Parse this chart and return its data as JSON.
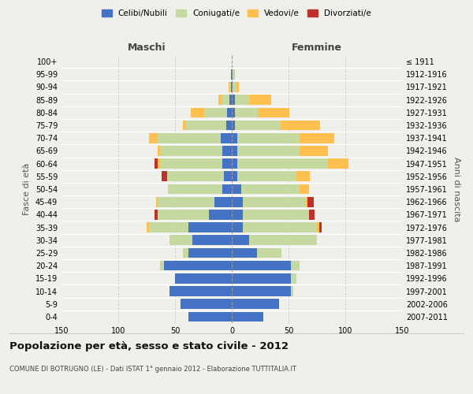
{
  "age_groups": [
    "0-4",
    "5-9",
    "10-14",
    "15-19",
    "20-24",
    "25-29",
    "30-34",
    "35-39",
    "40-44",
    "45-49",
    "50-54",
    "55-59",
    "60-64",
    "65-69",
    "70-74",
    "75-79",
    "80-84",
    "85-89",
    "90-94",
    "95-99",
    "100+"
  ],
  "birth_years": [
    "2007-2011",
    "2002-2006",
    "1997-2001",
    "1992-1996",
    "1987-1991",
    "1982-1986",
    "1977-1981",
    "1972-1976",
    "1967-1971",
    "1962-1966",
    "1957-1961",
    "1952-1956",
    "1947-1951",
    "1942-1946",
    "1937-1941",
    "1932-1936",
    "1927-1931",
    "1922-1926",
    "1917-1921",
    "1912-1916",
    "≤ 1911"
  ],
  "maschi": {
    "celibi": [
      38,
      45,
      55,
      50,
      60,
      38,
      35,
      38,
      20,
      15,
      8,
      7,
      8,
      8,
      10,
      5,
      4,
      2,
      1,
      1,
      0
    ],
    "coniugati": [
      0,
      0,
      0,
      0,
      3,
      5,
      20,
      35,
      45,
      50,
      48,
      50,
      55,
      55,
      55,
      35,
      20,
      7,
      1,
      0,
      0
    ],
    "vedovi": [
      0,
      0,
      0,
      0,
      0,
      0,
      0,
      2,
      0,
      2,
      0,
      0,
      2,
      2,
      8,
      3,
      12,
      3,
      1,
      0,
      0
    ],
    "divorziati": [
      0,
      0,
      0,
      0,
      0,
      0,
      0,
      0,
      3,
      0,
      0,
      5,
      3,
      0,
      0,
      0,
      0,
      0,
      0,
      0,
      0
    ]
  },
  "femmine": {
    "nubili": [
      28,
      42,
      52,
      52,
      52,
      22,
      15,
      10,
      10,
      10,
      8,
      5,
      5,
      5,
      5,
      3,
      3,
      3,
      1,
      1,
      0
    ],
    "coniugate": [
      0,
      0,
      2,
      5,
      8,
      22,
      60,
      65,
      58,
      55,
      52,
      52,
      80,
      55,
      55,
      40,
      20,
      12,
      3,
      1,
      0
    ],
    "vedove": [
      0,
      0,
      0,
      0,
      0,
      0,
      0,
      2,
      0,
      2,
      8,
      12,
      18,
      25,
      30,
      35,
      28,
      20,
      2,
      1,
      0
    ],
    "divorziate": [
      0,
      0,
      0,
      0,
      0,
      0,
      0,
      2,
      5,
      5,
      0,
      0,
      0,
      0,
      0,
      0,
      0,
      0,
      0,
      0,
      0
    ]
  },
  "colors": {
    "celibi_nubili": "#4472c4",
    "coniugati": "#c5d9a0",
    "vedovi": "#ffc050",
    "divorziati": "#c0302a"
  },
  "title": "Popolazione per età, sesso e stato civile - 2012",
  "subtitle": "COMUNE DI BOTRUGNO (LE) - Dati ISTAT 1° gennaio 2012 - Elaborazione TUTTITALIA.IT",
  "xlabel_left": "Maschi",
  "xlabel_right": "Femmine",
  "ylabel_left": "Fasce di età",
  "ylabel_right": "Anni di nascita",
  "xlim": 150,
  "bg_color": "#f0f0eb",
  "grid_color": "#cccccc",
  "legend_labels": [
    "Celibi/Nubili",
    "Coniugati/e",
    "Vedovi/e",
    "Divorziati/e"
  ]
}
